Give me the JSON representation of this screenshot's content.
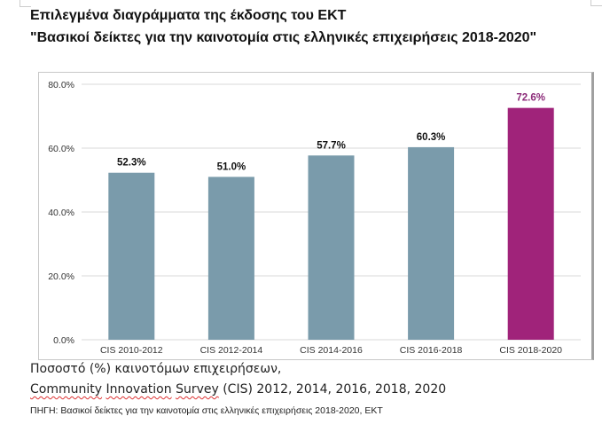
{
  "header": {
    "title_line1": "Επιλεγμένα διαγράμματα της έκδοσης του ΕΚΤ",
    "title_line2": "\"Βασικοί δείκτες για την καινοτομία στις ελληνικές επιχειρήσεις 2018-2020\""
  },
  "caption": {
    "line1": "Ποσοστό (%) καινοτόμων επιχειρήσεων,",
    "line2_words": [
      "Community",
      "Innovation",
      "Survey"
    ],
    "line2_rest": " (CIS) 2012, 2014, 2016, 2018, 2020",
    "source": "ΠΗΓΗ: Βασικοί δείκτες για την καινοτομία στις ελληνικές επιχειρήσεις 2018-2020, ΕΚΤ"
  },
  "chart_data": {
    "type": "bar",
    "title": "",
    "xlabel": "",
    "ylabel": "",
    "categories": [
      "CIS 2010-2012",
      "CIS 2012-2014",
      "CIS 2014-2016",
      "CIS 2016-2018",
      "CIS 2018-2020"
    ],
    "values": [
      52.3,
      51.0,
      57.7,
      60.3,
      72.6
    ],
    "data_labels": [
      "52.3%",
      "51.0%",
      "57.7%",
      "60.3%",
      "72.6%"
    ],
    "highlight_index": 4,
    "ylim": [
      0,
      80
    ],
    "yticks": [
      0,
      20,
      40,
      60,
      80
    ],
    "ytick_labels": [
      "0.0%",
      "20.0%",
      "40.0%",
      "60.0%",
      "80.0%"
    ],
    "grid": true,
    "legend": "none",
    "colors": {
      "bar": "#7a9bab",
      "highlight": "#a0237a",
      "highlight_label": "#8b2a78",
      "label": "#111111",
      "grid": "#d9d9d9",
      "axis_text": "#333333"
    }
  }
}
